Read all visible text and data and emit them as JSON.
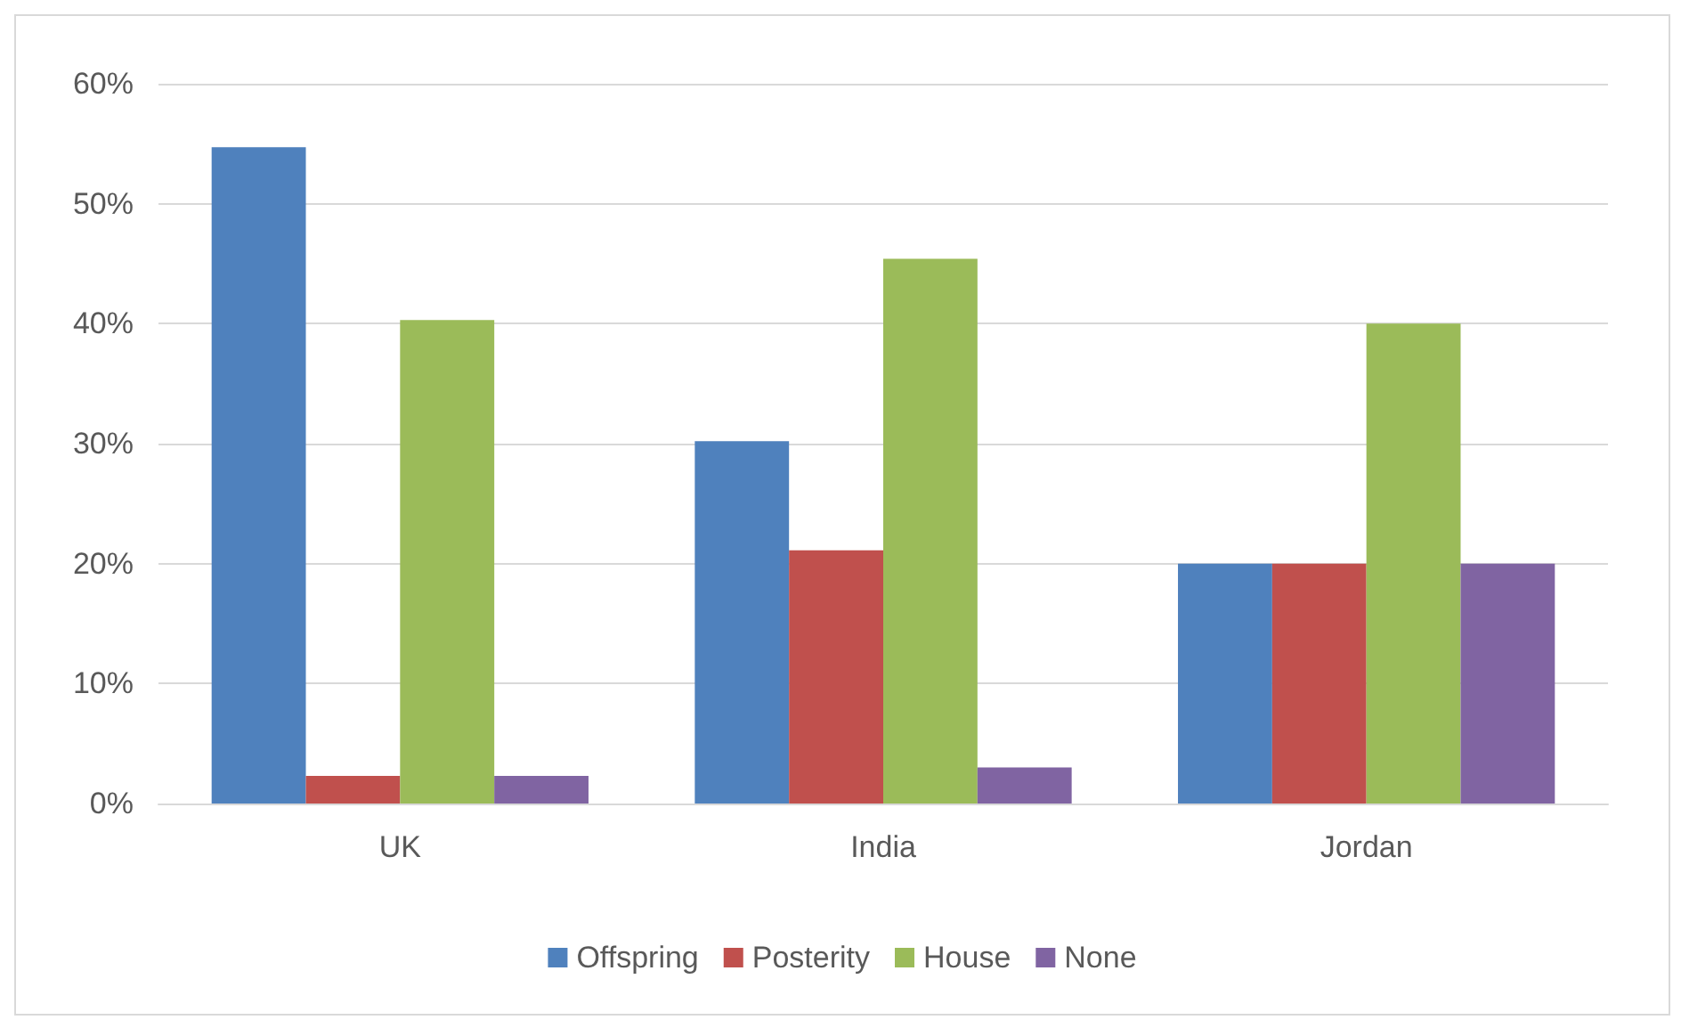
{
  "chart_data": {
    "type": "bar",
    "categories": [
      "UK",
      "India",
      "Jordan"
    ],
    "series": [
      {
        "name": "Offspring",
        "color": "#4f81bd",
        "values": [
          54.7,
          30.2,
          20
        ]
      },
      {
        "name": "Posterity",
        "color": "#c0504d",
        "values": [
          2.3,
          21.1,
          20
        ]
      },
      {
        "name": "House",
        "color": "#9bbb59",
        "values": [
          40.3,
          45.4,
          40
        ]
      },
      {
        "name": "None",
        "color": "#8064a2",
        "values": [
          2.3,
          3.0,
          20
        ]
      }
    ],
    "ylim": [
      0,
      60
    ],
    "yticks": [
      {
        "value": 0,
        "label": "0%"
      },
      {
        "value": 10,
        "label": "10%"
      },
      {
        "value": 20,
        "label": "20%"
      },
      {
        "value": 30,
        "label": "30%"
      },
      {
        "value": 40,
        "label": "40%"
      },
      {
        "value": 50,
        "label": "50%"
      },
      {
        "value": 60,
        "label": "60%"
      }
    ],
    "grid": "y",
    "legend": "bottom"
  }
}
